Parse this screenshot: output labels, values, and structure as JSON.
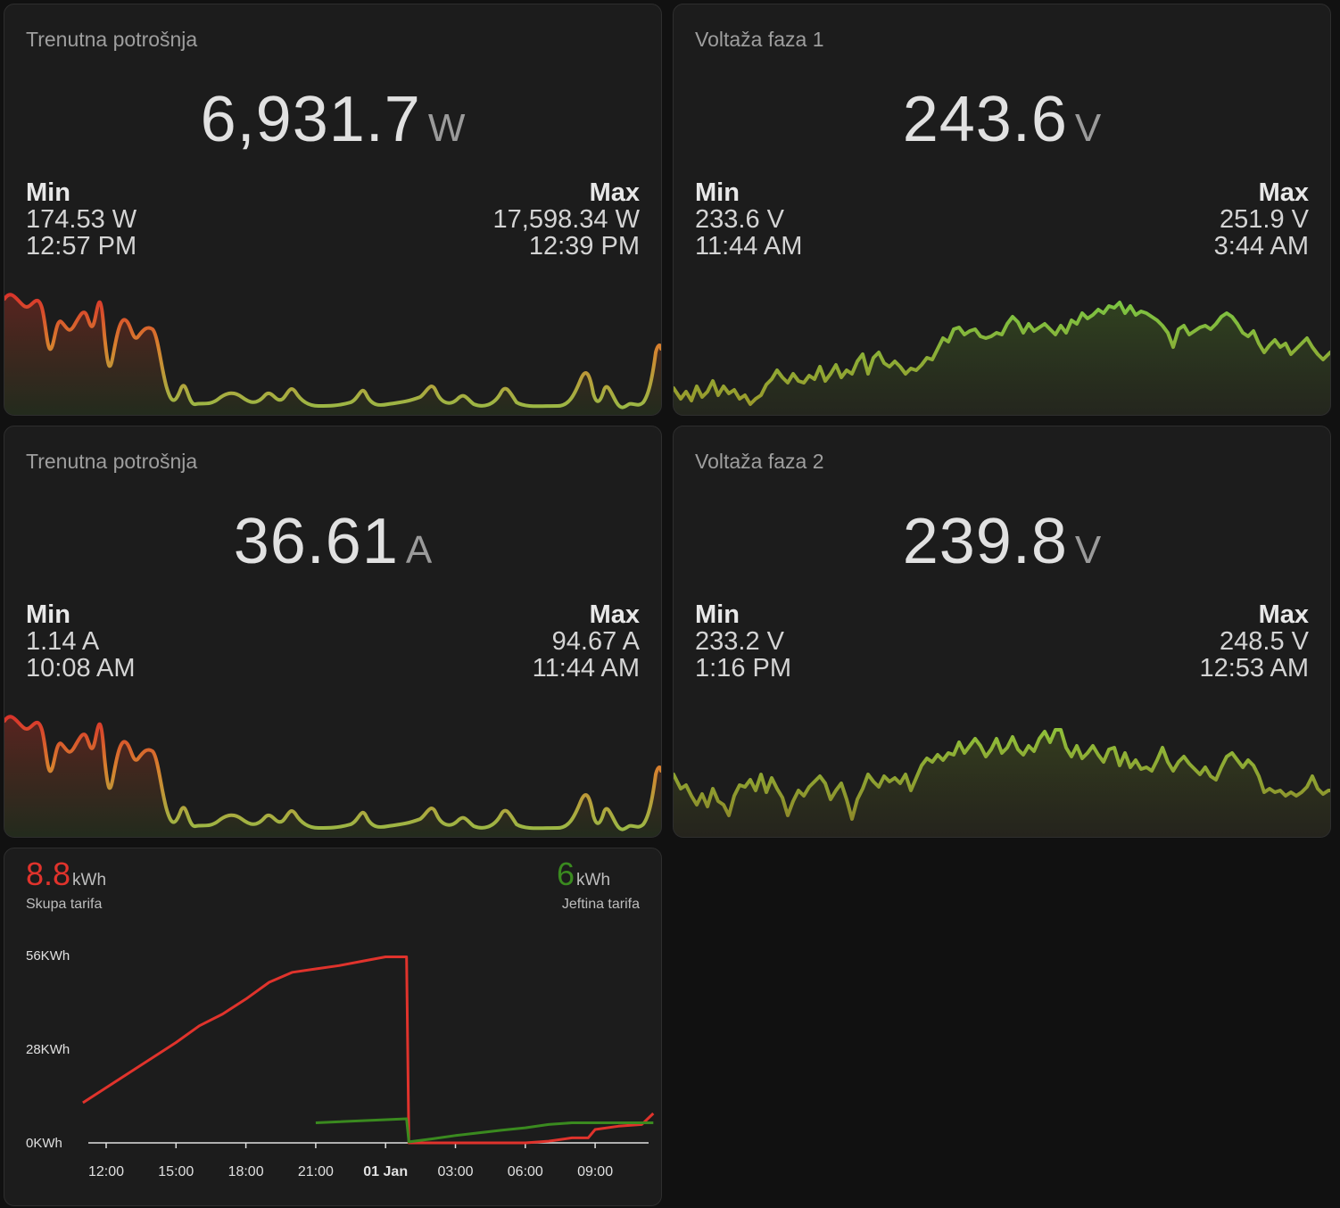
{
  "cards": {
    "power": {
      "title": "Trenutna potrošnja",
      "value": "6,931.7",
      "unit": "W",
      "min_label": "Min",
      "min_value": "174.53 W",
      "min_time": "12:57 PM",
      "max_label": "Max",
      "max_value": "17,598.34 W",
      "max_time": "12:39 PM"
    },
    "voltage1": {
      "title": "Voltaža faza 1",
      "value": "243.6",
      "unit": "V",
      "min_label": "Min",
      "min_value": "233.6 V",
      "min_time": "11:44 AM",
      "max_label": "Max",
      "max_value": "251.9 V",
      "max_time": "3:44 AM"
    },
    "current": {
      "title": "Trenutna potrošnja",
      "value": "36.61",
      "unit": "A",
      "min_label": "Min",
      "min_value": "1.14 A",
      "min_time": "10:08 AM",
      "max_label": "Max",
      "max_value": "94.67 A",
      "max_time": "11:44 AM"
    },
    "voltage2": {
      "title": "Voltaža faza 2",
      "value": "239.8",
      "unit": "V",
      "min_label": "Min",
      "min_value": "233.2 V",
      "min_time": "1:16 PM",
      "max_label": "Max",
      "max_value": "248.5 V",
      "max_time": "12:53 AM"
    }
  },
  "energy": {
    "expensive": {
      "value": "8.8",
      "unit": "kWh",
      "label": "Skupa tarifa",
      "color": "#e0332c"
    },
    "cheap": {
      "value": "6",
      "unit": "kWh",
      "label": "Jeftina tarifa",
      "color": "#3a8a1f"
    }
  },
  "chart_data": {
    "type": "line",
    "y_ticks": [
      "56KWh",
      "28KWh",
      "0KWh"
    ],
    "ylim": [
      0,
      56
    ],
    "x_ticks": [
      "12:00",
      "15:00",
      "18:00",
      "21:00",
      "01 Jan",
      "03:00",
      "06:00",
      "09:00"
    ],
    "xlim": [
      -1,
      23.5
    ],
    "series": [
      {
        "name": "Skupa tarifa",
        "color": "#e0332c",
        "x": [
          -1,
          0,
          1,
          2,
          3,
          4,
          5,
          6,
          7,
          8,
          9,
          10,
          11,
          12,
          12.9,
          13.0,
          13.5,
          14,
          15,
          16,
          17,
          18,
          19,
          20,
          20.7,
          21,
          22,
          23,
          23.5
        ],
        "y": [
          12,
          16.5,
          21,
          25.5,
          30,
          35,
          38.5,
          43,
          48,
          51,
          52,
          53,
          54.3,
          55.6,
          55.6,
          0,
          0,
          0,
          0,
          0,
          0,
          0,
          0.5,
          1.5,
          1.5,
          4,
          5,
          5.5,
          8.8
        ]
      },
      {
        "name": "Jeftina tarifa",
        "color": "#3a8a1f",
        "x": [
          9,
          12.9,
          13.0,
          14,
          15,
          16,
          17,
          18,
          19,
          20,
          21,
          22,
          23,
          23.5
        ],
        "y": [
          6,
          7.2,
          0.3,
          1.2,
          2.2,
          3,
          3.8,
          4.5,
          5.5,
          6,
          6,
          6,
          6,
          6
        ]
      }
    ]
  }
}
